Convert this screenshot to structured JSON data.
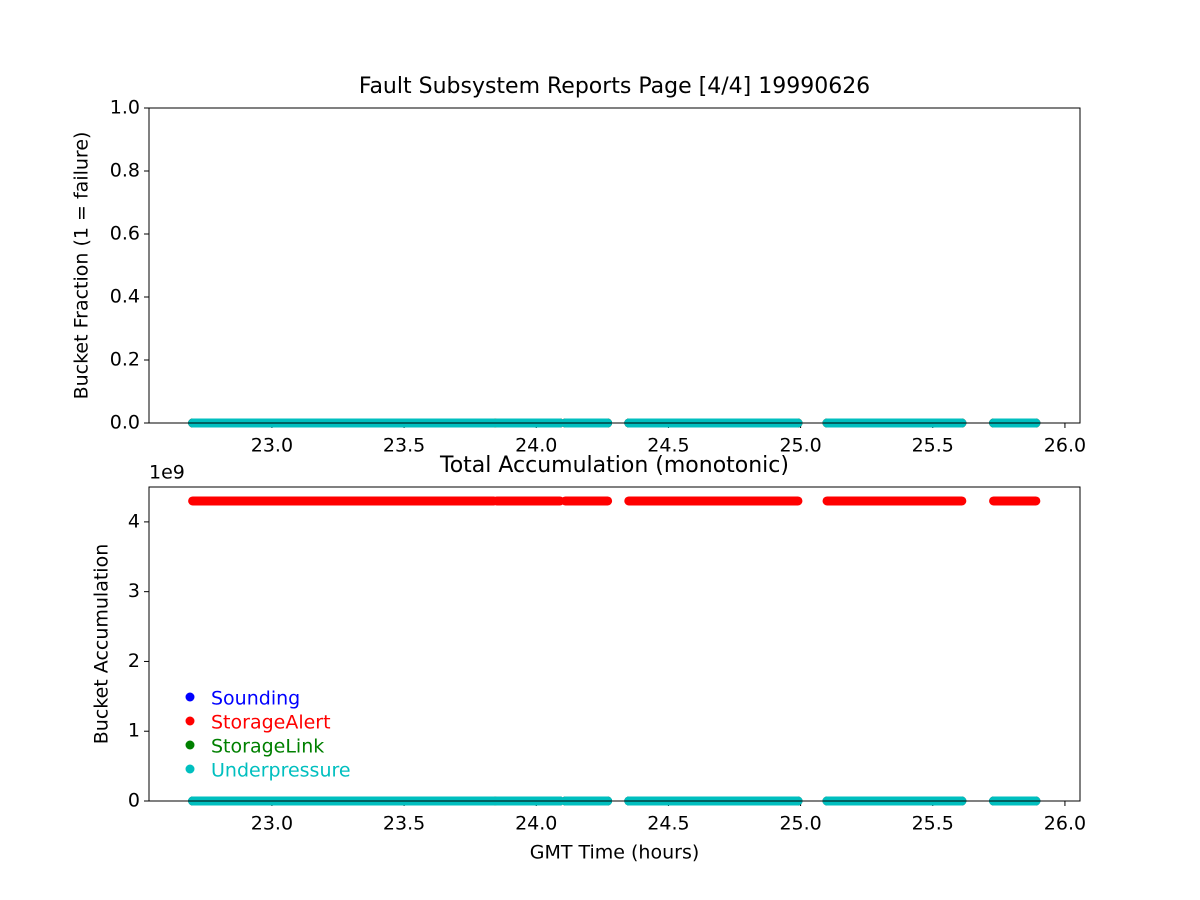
{
  "chart_data": [
    {
      "type": "line",
      "title": "Fault Subsystem Reports Page [4/4] 19990626",
      "y_label": "Bucket Fraction (1 = failure)",
      "x": [
        22.7,
        23.84,
        23.845,
        23.85,
        24.09,
        24.1,
        24.11,
        24.27,
        24.31,
        24.35,
        24.99,
        25.045,
        25.1,
        25.61,
        25.67,
        25.73,
        25.89
      ],
      "series": [
        {
          "color": "#0000ff",
          "values": [
            0,
            0,
            null,
            0,
            0,
            null,
            0,
            0,
            null,
            0,
            0,
            null,
            0,
            0,
            null,
            0,
            0
          ]
        },
        {
          "color": "#ff0000",
          "values": [
            0,
            0,
            null,
            0,
            0,
            null,
            0,
            0,
            null,
            0,
            0,
            null,
            0,
            0,
            null,
            0,
            0
          ]
        },
        {
          "color": "#008000",
          "values": [
            0,
            0,
            null,
            0,
            0,
            null,
            0,
            0,
            null,
            0,
            0,
            null,
            0,
            0,
            null,
            0,
            0
          ]
        },
        {
          "color": "#00bfbf",
          "values": [
            0,
            0,
            null,
            0,
            0,
            null,
            0,
            0,
            null,
            0,
            0,
            null,
            0,
            0,
            null,
            0,
            0
          ]
        }
      ],
      "xlim": [
        22.535,
        26.057
      ],
      "xticks": [
        {
          "value": 23,
          "label": "23.0"
        },
        {
          "value": 23.5,
          "label": "23.5"
        },
        {
          "value": 24,
          "label": "24.0"
        },
        {
          "value": 24.5,
          "label": "24.5"
        },
        {
          "value": 25,
          "label": "25.0"
        },
        {
          "value": 25.5,
          "label": "25.5"
        },
        {
          "value": 26,
          "label": "26.0"
        }
      ],
      "ylim": [
        0,
        1
      ],
      "yticks": [
        {
          "value": 0,
          "label": "0.0"
        },
        {
          "value": 0.2,
          "label": "0.2"
        },
        {
          "value": 0.4,
          "label": "0.4"
        },
        {
          "value": 0.6,
          "label": "0.6"
        },
        {
          "value": 0.8,
          "label": "0.8"
        },
        {
          "value": 1,
          "label": "1.0"
        }
      ]
    },
    {
      "type": "line",
      "title": "Total Accumulation (monotonic)",
      "y_label": "Bucket Accumulation",
      "x_label": "GMT Time (hours)",
      "y_offset_label": "1e9",
      "x": [
        22.7,
        23.84,
        23.845,
        23.85,
        24.09,
        24.1,
        24.11,
        24.27,
        24.31,
        24.35,
        24.99,
        25.045,
        25.1,
        25.61,
        25.67,
        25.73,
        25.89
      ],
      "series": [
        {
          "name": "Sounding",
          "color": "#0000ff",
          "values": [
            0,
            0,
            null,
            0,
            0,
            null,
            0,
            0,
            null,
            0,
            0,
            null,
            0,
            0,
            null,
            0,
            0
          ]
        },
        {
          "name": "StorageAlert",
          "color": "#ff0000",
          "values": [
            4300000000,
            4300000000,
            null,
            4300000000,
            4300000000,
            null,
            4300000000,
            4300000000,
            null,
            4300000000,
            4300000000,
            null,
            4300000000,
            4300000000,
            null,
            4300000000,
            4300000000
          ]
        },
        {
          "name": "StorageLink",
          "color": "#008000",
          "values": [
            0,
            0,
            null,
            0,
            0,
            null,
            0,
            0,
            null,
            0,
            0,
            null,
            0,
            0,
            null,
            0,
            0
          ]
        },
        {
          "name": "Underpressure",
          "color": "#00bfbf",
          "values": [
            0,
            0,
            null,
            0,
            0,
            null,
            0,
            0,
            null,
            0,
            0,
            null,
            0,
            0,
            null,
            0,
            0
          ]
        }
      ],
      "xlim": [
        22.535,
        26.057
      ],
      "xticks": [
        {
          "value": 23,
          "label": "23.0"
        },
        {
          "value": 23.5,
          "label": "23.5"
        },
        {
          "value": 24,
          "label": "24.0"
        },
        {
          "value": 24.5,
          "label": "24.5"
        },
        {
          "value": 25,
          "label": "25.0"
        },
        {
          "value": 25.5,
          "label": "25.5"
        },
        {
          "value": 26,
          "label": "26.0"
        }
      ],
      "ylim": [
        0,
        4500000000
      ],
      "yticks": [
        {
          "value": 0,
          "label": "0"
        },
        {
          "value": 1000000000,
          "label": "1"
        },
        {
          "value": 2000000000,
          "label": "2"
        },
        {
          "value": 3000000000,
          "label": "3"
        },
        {
          "value": 4000000000,
          "label": "4"
        }
      ],
      "legend": "lower left"
    }
  ]
}
